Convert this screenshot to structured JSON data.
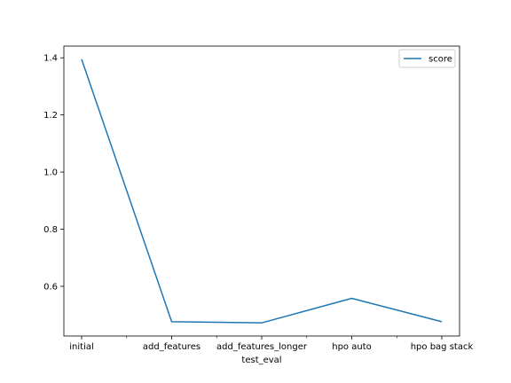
{
  "chart_data": {
    "type": "line",
    "categories": [
      "initial",
      "add_features",
      "add_features_longer",
      "hpo auto",
      "hpo bag stack"
    ],
    "series": [
      {
        "name": "score",
        "values": [
          1.395,
          0.476,
          0.472,
          0.558,
          0.476
        ],
        "color": "#1f77b4"
      }
    ],
    "title": "",
    "xlabel": "test_eval",
    "ylabel": "",
    "ylim": [
      0.426,
      1.441
    ],
    "yticks": [
      0.6,
      0.8,
      1.0,
      1.2,
      1.4
    ],
    "ytick_labels": [
      "0.6",
      "0.8",
      "1.0",
      "1.2",
      "1.4"
    ],
    "grid": false,
    "legend_position": "upper right"
  }
}
